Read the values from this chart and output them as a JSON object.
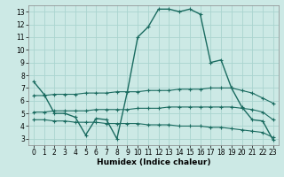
{
  "xlabel": "Humidex (Indice chaleur)",
  "background_color": "#cce9e5",
  "grid_color": "#aad4cf",
  "line_color": "#1a6b60",
  "xlim": [
    -0.5,
    23.5
  ],
  "ylim": [
    2.5,
    13.5
  ],
  "xticks": [
    0,
    1,
    2,
    3,
    4,
    5,
    6,
    7,
    8,
    9,
    10,
    11,
    12,
    13,
    14,
    15,
    16,
    17,
    18,
    19,
    20,
    21,
    22,
    23
  ],
  "yticks": [
    3,
    4,
    5,
    6,
    7,
    8,
    9,
    10,
    11,
    12,
    13
  ],
  "series": [
    {
      "x": [
        0,
        1,
        2,
        3,
        4,
        5,
        6,
        7,
        8,
        9,
        10,
        11,
        12,
        13,
        14,
        15,
        16,
        17,
        18,
        19,
        20,
        21,
        22,
        23
      ],
      "y": [
        7.5,
        6.5,
        5.0,
        5.0,
        4.7,
        3.3,
        4.6,
        4.5,
        3.0,
        6.7,
        11.0,
        11.8,
        13.2,
        13.2,
        13.0,
        13.2,
        12.8,
        9.0,
        9.2,
        7.0,
        5.5,
        4.5,
        4.4,
        2.9
      ]
    },
    {
      "x": [
        0,
        1,
        2,
        3,
        4,
        5,
        6,
        7,
        8,
        9,
        10,
        11,
        12,
        13,
        14,
        15,
        16,
        17,
        18,
        19,
        20,
        21,
        22,
        23
      ],
      "y": [
        6.4,
        6.4,
        6.5,
        6.5,
        6.5,
        6.6,
        6.6,
        6.6,
        6.7,
        6.7,
        6.7,
        6.8,
        6.8,
        6.8,
        6.9,
        6.9,
        6.9,
        7.0,
        7.0,
        7.0,
        6.8,
        6.6,
        6.2,
        5.8
      ]
    },
    {
      "x": [
        0,
        1,
        2,
        3,
        4,
        5,
        6,
        7,
        8,
        9,
        10,
        11,
        12,
        13,
        14,
        15,
        16,
        17,
        18,
        19,
        20,
        21,
        22,
        23
      ],
      "y": [
        5.1,
        5.1,
        5.2,
        5.2,
        5.2,
        5.2,
        5.3,
        5.3,
        5.3,
        5.3,
        5.4,
        5.4,
        5.4,
        5.5,
        5.5,
        5.5,
        5.5,
        5.5,
        5.5,
        5.5,
        5.4,
        5.3,
        5.1,
        4.5
      ]
    },
    {
      "x": [
        0,
        1,
        2,
        3,
        4,
        5,
        6,
        7,
        8,
        9,
        10,
        11,
        12,
        13,
        14,
        15,
        16,
        17,
        18,
        19,
        20,
        21,
        22,
        23
      ],
      "y": [
        4.5,
        4.5,
        4.4,
        4.4,
        4.3,
        4.3,
        4.3,
        4.2,
        4.2,
        4.2,
        4.2,
        4.1,
        4.1,
        4.1,
        4.0,
        4.0,
        4.0,
        3.9,
        3.9,
        3.8,
        3.7,
        3.6,
        3.5,
        3.1
      ]
    }
  ]
}
